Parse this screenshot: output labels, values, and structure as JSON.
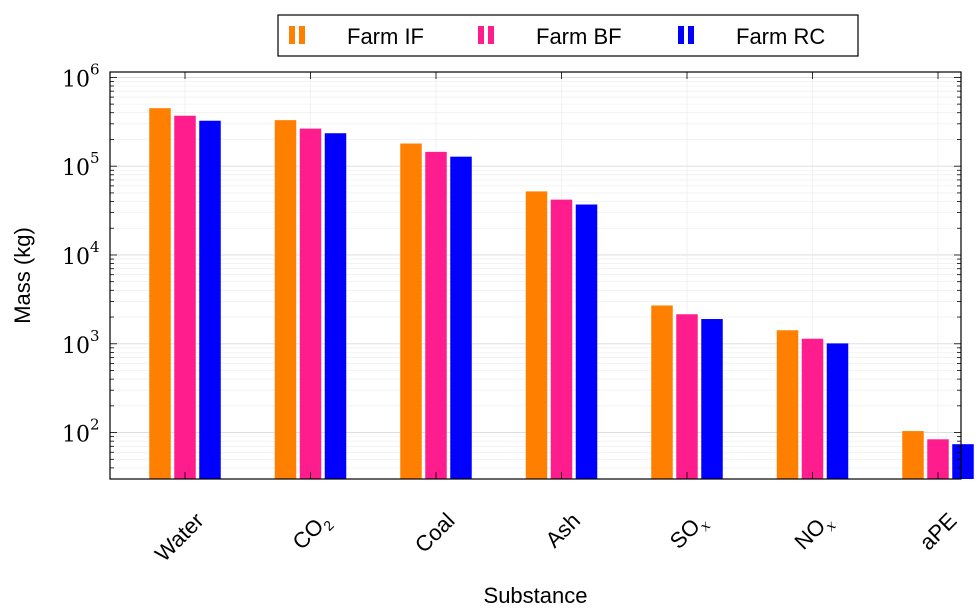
{
  "chart_data": {
    "type": "bar",
    "xlabel": "Substance",
    "ylabel": "Mass (kg)",
    "yscale": "log",
    "ylim": [
      30,
      1150000
    ],
    "grid": true,
    "legend_position": "top-center",
    "categories": [
      {
        "base": "Water",
        "sub": ""
      },
      {
        "base": "CO",
        "sub": "2"
      },
      {
        "base": "Coal",
        "sub": ""
      },
      {
        "base": "Ash",
        "sub": ""
      },
      {
        "base": "SO",
        "sub": "x"
      },
      {
        "base": "NO",
        "sub": "x"
      },
      {
        "base": "aPE",
        "sub": ""
      }
    ],
    "series": [
      {
        "name": "Farm IF",
        "color": "#ff8000",
        "values": [
          450000,
          330000,
          180000,
          52000,
          2700,
          1420,
          104
        ]
      },
      {
        "name": "Farm BF",
        "color": "#ff1d8e",
        "values": [
          370000,
          265000,
          145000,
          42000,
          2150,
          1140,
          84
        ]
      },
      {
        "name": "Farm RC",
        "color": "#0000ff",
        "values": [
          325000,
          235000,
          128000,
          37000,
          1900,
          1010,
          74
        ]
      }
    ],
    "y_ticks": [
      {
        "base": "10",
        "exp": "2",
        "value": 100
      },
      {
        "base": "10",
        "exp": "3",
        "value": 1000
      },
      {
        "base": "10",
        "exp": "4",
        "value": 10000
      },
      {
        "base": "10",
        "exp": "5",
        "value": 100000
      },
      {
        "base": "10",
        "exp": "6",
        "value": 1000000
      }
    ]
  }
}
